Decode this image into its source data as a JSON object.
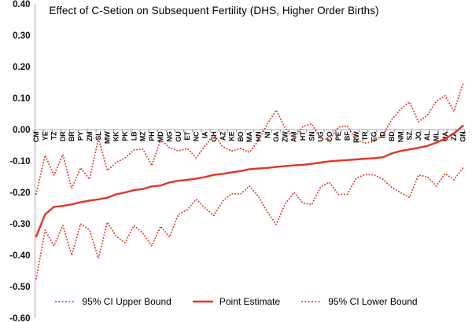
{
  "chart": {
    "accent_color": "#e23527",
    "axis_color": "#a8a8a8",
    "text_color": "#000000"
  },
  "legend": {
    "items": [
      {
        "label": "95% CI Upper Bound",
        "style": "dotted"
      },
      {
        "label": "Point Estimate",
        "style": "solid"
      },
      {
        "label": "95% CI Lower Bound",
        "style": "dotted"
      }
    ]
  },
  "chart_data": {
    "type": "line",
    "title": "Effect of C-Setion on Subsequent Fertility (DHS, Higher Order Births)",
    "xlabel": "",
    "ylabel": "",
    "ylim": [
      -0.6,
      0.4
    ],
    "grid": false,
    "legend_position": "bottom",
    "y_ticks": [
      "0.40",
      "0.30",
      "0.20",
      "0.10",
      "0.00",
      "-0.10",
      "-0.20",
      "-0.30",
      "-0.40",
      "-0.50",
      "-0.60"
    ],
    "categories": [
      "CM",
      "YE",
      "TZ",
      "DR",
      "BR",
      "PY",
      "ZM",
      "SL",
      "MW",
      "KK",
      "PK",
      "LB",
      "MZ",
      "PH",
      "MD",
      "NG",
      "GU",
      "ET",
      "NC",
      "IA",
      "GH",
      "AZ",
      "KE",
      "BO",
      "MA",
      "HN",
      "NI",
      "GA",
      "ZW",
      "AM",
      "HT",
      "SN",
      "UG",
      "CO",
      "PE",
      "BF",
      "RW",
      "TR",
      "EG",
      "ID",
      "BD",
      "NM",
      "SZ",
      "JO",
      "AL",
      "ML",
      "UA",
      "ZA",
      "GN"
    ],
    "series": [
      {
        "name": "95% CI Upper Bound",
        "style": "dotted",
        "values": [
          -0.205,
          -0.082,
          -0.145,
          -0.08,
          -0.188,
          -0.122,
          -0.158,
          -0.028,
          -0.13,
          -0.105,
          -0.09,
          -0.065,
          -0.062,
          -0.115,
          -0.032,
          -0.058,
          -0.068,
          -0.06,
          -0.09,
          -0.052,
          -0.015,
          -0.055,
          -0.068,
          -0.06,
          -0.072,
          -0.035,
          0.018,
          0.062,
          0.005,
          -0.028,
          0.01,
          0.018,
          -0.028,
          -0.032,
          0.008,
          0.012,
          -0.035,
          -0.043,
          -0.038,
          -0.018,
          0.032,
          0.065,
          0.088,
          0.025,
          0.045,
          0.09,
          0.108,
          0.058,
          0.145
        ]
      },
      {
        "name": "Point Estimate",
        "style": "solid",
        "values": [
          -0.34,
          -0.27,
          -0.246,
          -0.243,
          -0.238,
          -0.231,
          -0.226,
          -0.222,
          -0.217,
          -0.206,
          -0.2,
          -0.193,
          -0.189,
          -0.181,
          -0.178,
          -0.168,
          -0.163,
          -0.16,
          -0.156,
          -0.151,
          -0.144,
          -0.141,
          -0.136,
          -0.132,
          -0.126,
          -0.124,
          -0.122,
          -0.119,
          -0.116,
          -0.114,
          -0.112,
          -0.109,
          -0.105,
          -0.101,
          -0.099,
          -0.097,
          -0.095,
          -0.093,
          -0.091,
          -0.088,
          -0.076,
          -0.068,
          -0.063,
          -0.058,
          -0.052,
          -0.042,
          -0.029,
          -0.012,
          0.012
        ]
      },
      {
        "name": "95% CI Lower Bound",
        "style": "dotted",
        "values": [
          -0.475,
          -0.32,
          -0.37,
          -0.305,
          -0.4,
          -0.3,
          -0.32,
          -0.41,
          -0.295,
          -0.34,
          -0.36,
          -0.305,
          -0.33,
          -0.37,
          -0.308,
          -0.342,
          -0.27,
          -0.255,
          -0.222,
          -0.25,
          -0.273,
          -0.227,
          -0.204,
          -0.205,
          -0.18,
          -0.213,
          -0.262,
          -0.302,
          -0.237,
          -0.2,
          -0.234,
          -0.238,
          -0.182,
          -0.168,
          -0.206,
          -0.206,
          -0.155,
          -0.143,
          -0.144,
          -0.158,
          -0.184,
          -0.201,
          -0.216,
          -0.145,
          -0.15,
          -0.18,
          -0.14,
          -0.16,
          -0.122
        ]
      }
    ]
  }
}
